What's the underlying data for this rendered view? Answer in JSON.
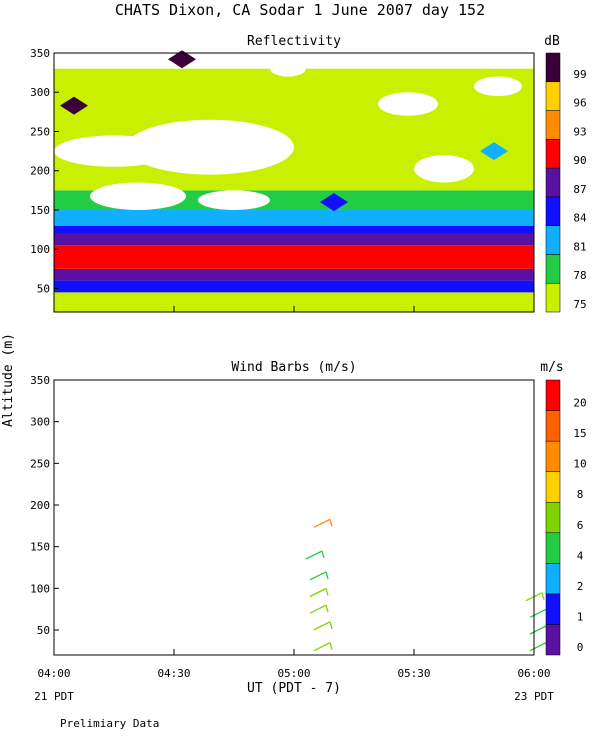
{
  "header": {
    "title": "CHATS Dixon, CA  Sodar    1 June 2007   day 152"
  },
  "footer": {
    "note": "Prelimiary Data"
  },
  "colors": {
    "background": "#ffffff",
    "reflectivity_scale": [
      "#c8f000",
      "#22cc44",
      "#10b0ff",
      "#1010ff",
      "#5a10a0",
      "#ff0000",
      "#ff8c00",
      "#ffd000",
      "#3a003a"
    ],
    "wind_scale": [
      "#5a10a0",
      "#1010ff",
      "#10b0ff",
      "#22cc44",
      "#7fd400",
      "#ffd000",
      "#ff8c00",
      "#ff6000",
      "#ff0000"
    ]
  },
  "chart_data": [
    {
      "type": "heatmap",
      "title": "Reflectivity",
      "xlabel": "UT  (PDT - 7)",
      "ylabel": "Altitude (m)",
      "x_ticks": [
        "04:00",
        "04:30",
        "05:00",
        "05:30",
        "06:00"
      ],
      "x_sub": [
        "21 PDT",
        "23 PDT"
      ],
      "ylim": [
        20,
        350
      ],
      "y_ticks": [
        50,
        100,
        150,
        200,
        250,
        300,
        350
      ],
      "colorbar": {
        "unit": "dB",
        "levels": [
          75,
          78,
          81,
          84,
          87,
          90,
          93,
          96,
          99
        ]
      },
      "bands": [
        {
          "from": 20,
          "to": 45,
          "level": 75
        },
        {
          "from": 45,
          "to": 60,
          "level": 84
        },
        {
          "from": 60,
          "to": 75,
          "level": 87
        },
        {
          "from": 75,
          "to": 105,
          "level": 90
        },
        {
          "from": 105,
          "to": 120,
          "level": 87
        },
        {
          "from": 120,
          "to": 130,
          "level": 84
        },
        {
          "from": 130,
          "to": 150,
          "level": 81
        },
        {
          "from": 150,
          "to": 175,
          "level": 78
        },
        {
          "from": 175,
          "to": 330,
          "level": 75
        }
      ],
      "features": [
        {
          "time": "04:05",
          "alt": 283,
          "level": 99
        },
        {
          "time": "04:32",
          "alt": 342,
          "level": 99
        },
        {
          "time": "05:10",
          "alt": 160,
          "level": 84
        },
        {
          "time": "05:50",
          "alt": 225,
          "level": 81
        }
      ],
      "grid": false
    },
    {
      "type": "scatter",
      "title": "Wind Barbs (m/s)",
      "xlabel": "UT  (PDT - 7)",
      "ylabel": "Altitude (m)",
      "x_ticks": [
        "04:00",
        "04:30",
        "05:00",
        "05:30",
        "06:00"
      ],
      "x_sub": [
        "21 PDT",
        "23 PDT"
      ],
      "ylim": [
        20,
        350
      ],
      "y_ticks": [
        50,
        100,
        150,
        200,
        250,
        300,
        350
      ],
      "colorbar": {
        "unit": "m/s",
        "levels": [
          0,
          1,
          2,
          4,
          6,
          8,
          10,
          15,
          20
        ]
      },
      "barbs": [
        {
          "time": "05:07",
          "alt": 178,
          "speed": 10
        },
        {
          "time": "05:05",
          "alt": 140,
          "speed": 4
        },
        {
          "time": "05:06",
          "alt": 115,
          "speed": 4
        },
        {
          "time": "05:06",
          "alt": 95,
          "speed": 6
        },
        {
          "time": "05:06",
          "alt": 75,
          "speed": 6
        },
        {
          "time": "05:07",
          "alt": 55,
          "speed": 6
        },
        {
          "time": "05:07",
          "alt": 30,
          "speed": 6
        },
        {
          "time": "06:00",
          "alt": 90,
          "speed": 6
        },
        {
          "time": "06:01",
          "alt": 70,
          "speed": 4
        },
        {
          "time": "06:01",
          "alt": 50,
          "speed": 4
        },
        {
          "time": "06:01",
          "alt": 30,
          "speed": 4
        }
      ],
      "grid": false
    }
  ]
}
